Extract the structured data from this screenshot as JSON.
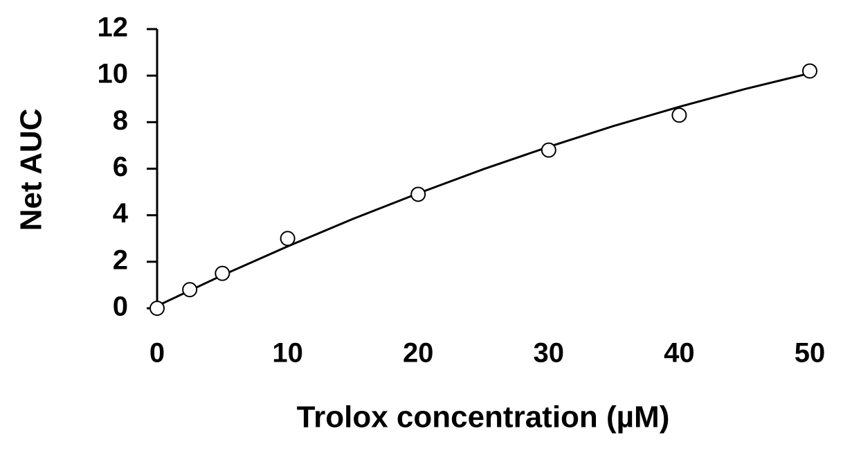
{
  "chart_data": {
    "type": "scatter",
    "x_label": "Trolox concentration (µM)",
    "y_label": "Net AUC",
    "series": [
      {
        "type": "scatter",
        "color": "#000000",
        "marker": "open-circle",
        "x": [
          0,
          2.5,
          5,
          10,
          20,
          30,
          40,
          50
        ],
        "values": [
          0,
          0.8,
          1.5,
          3.0,
          4.9,
          6.8,
          8.3,
          10.2
        ]
      },
      {
        "type": "line",
        "color": "#000000",
        "x": [
          0,
          5,
          10,
          15,
          20,
          25,
          30,
          35,
          40,
          45,
          50
        ],
        "values": [
          0.1,
          1.42,
          2.66,
          3.84,
          4.94,
          5.98,
          6.94,
          7.84,
          8.66,
          9.42,
          10.1
        ]
      }
    ],
    "xlim": [
      0,
      50
    ],
    "xticks": [
      0,
      10,
      20,
      30,
      40,
      50
    ],
    "ylim": [
      0,
      12
    ],
    "yticks": [
      0,
      2,
      4,
      6,
      8,
      10,
      12
    ],
    "grid": false
  }
}
